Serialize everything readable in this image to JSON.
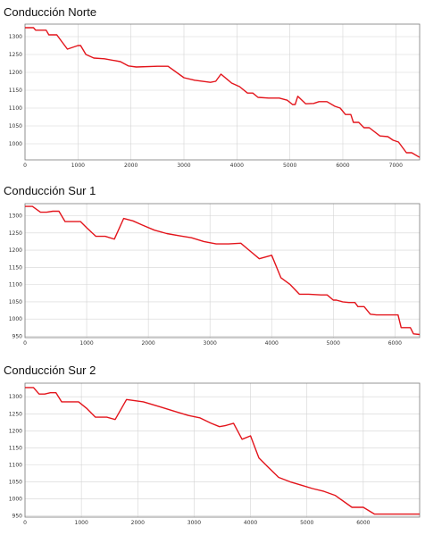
{
  "colors": {
    "line": "#e3141b",
    "grid": "#d4d4d4",
    "frame": "#7a7a7a",
    "text": "#111111"
  },
  "chart_data": [
    {
      "type": "line",
      "title": "Conducción Norte",
      "xlabel": "",
      "ylabel": "",
      "xlim": [
        0,
        7450
      ],
      "ylim": [
        955,
        1335
      ],
      "xticks": [
        0,
        1000,
        2000,
        3000,
        4000,
        5000,
        6000,
        7000
      ],
      "yticks": [
        1000,
        1050,
        1100,
        1150,
        1200,
        1250,
        1300
      ],
      "grid": true,
      "series": [
        {
          "x": [
            0,
            160,
            200,
            400,
            450,
            600,
            700,
            800,
            1000,
            1050,
            1150,
            1300,
            1500,
            1800,
            1950,
            2100,
            2500,
            2700,
            3000,
            3200,
            3500,
            3600,
            3700,
            3900,
            4050,
            4200,
            4300,
            4400,
            4600,
            4800,
            4950,
            5050,
            5100,
            5150,
            5300,
            5450,
            5550,
            5700,
            5850,
            5950,
            6050,
            6150,
            6200,
            6300,
            6400,
            6500,
            6700,
            6850,
            6950,
            7050,
            7200,
            7300,
            7450
          ],
          "y": [
            1325,
            1325,
            1318,
            1318,
            1305,
            1305,
            1285,
            1265,
            1275,
            1275,
            1250,
            1240,
            1238,
            1230,
            1218,
            1215,
            1217,
            1217,
            1185,
            1178,
            1172,
            1175,
            1195,
            1170,
            1160,
            1142,
            1142,
            1130,
            1128,
            1128,
            1122,
            1110,
            1110,
            1133,
            1112,
            1113,
            1118,
            1118,
            1105,
            1100,
            1082,
            1082,
            1060,
            1060,
            1045,
            1045,
            1022,
            1020,
            1010,
            1005,
            975,
            975,
            962
          ]
        }
      ]
    },
    {
      "type": "line",
      "title": "Conducción Sur 1",
      "xlabel": "",
      "ylabel": "",
      "xlim": [
        0,
        6400
      ],
      "ylim": [
        946,
        1335
      ],
      "xticks": [
        0,
        1000,
        2000,
        3000,
        4000,
        5000,
        6000
      ],
      "yticks": [
        950,
        1000,
        1050,
        1100,
        1150,
        1200,
        1250,
        1300
      ],
      "grid": true,
      "series": [
        {
          "x": [
            0,
            120,
            250,
            350,
            450,
            550,
            650,
            800,
            900,
            1000,
            1150,
            1300,
            1450,
            1600,
            1750,
            1900,
            2100,
            2300,
            2500,
            2700,
            2900,
            3100,
            3300,
            3500,
            3600,
            3800,
            4000,
            4150,
            4300,
            4450,
            4600,
            4800,
            4900,
            5000,
            5050,
            5150,
            5250,
            5350,
            5400,
            5500,
            5600,
            5700,
            5900,
            6050,
            6100,
            6150,
            6250,
            6300,
            6400
          ],
          "y": [
            1327,
            1327,
            1310,
            1310,
            1313,
            1313,
            1283,
            1283,
            1283,
            1265,
            1240,
            1240,
            1232,
            1292,
            1285,
            1273,
            1258,
            1248,
            1242,
            1236,
            1225,
            1218,
            1218,
            1220,
            1205,
            1175,
            1185,
            1120,
            1100,
            1072,
            1072,
            1070,
            1070,
            1055,
            1055,
            1050,
            1048,
            1048,
            1036,
            1036,
            1014,
            1012,
            1012,
            1012,
            975,
            975,
            975,
            957,
            955
          ]
        }
      ]
    },
    {
      "type": "line",
      "title": "Conducción Sur 2",
      "xlabel": "",
      "ylabel": "",
      "xlim": [
        0,
        7000
      ],
      "ylim": [
        946,
        1340
      ],
      "xticks": [
        0,
        1000,
        2000,
        3000,
        4000,
        5000,
        6000
      ],
      "yticks": [
        950,
        1000,
        1050,
        1100,
        1150,
        1200,
        1250,
        1300
      ],
      "grid": true,
      "series": [
        {
          "x": [
            0,
            150,
            250,
            350,
            450,
            550,
            650,
            800,
            950,
            1100,
            1250,
            1450,
            1600,
            1800,
            2100,
            2400,
            2700,
            2900,
            3100,
            3300,
            3450,
            3550,
            3700,
            3850,
            4000,
            4150,
            4300,
            4500,
            4700,
            4900,
            5100,
            5300,
            5500,
            5800,
            6000,
            6200,
            6400,
            6600,
            6750,
            6800,
            7000
          ],
          "y": [
            1327,
            1327,
            1308,
            1308,
            1312,
            1312,
            1285,
            1285,
            1285,
            1265,
            1240,
            1240,
            1233,
            1292,
            1285,
            1270,
            1255,
            1245,
            1238,
            1222,
            1212,
            1215,
            1222,
            1175,
            1185,
            1120,
            1095,
            1063,
            1050,
            1040,
            1030,
            1022,
            1010,
            975,
            975,
            955,
            955,
            955,
            955,
            955,
            955
          ]
        }
      ]
    }
  ]
}
